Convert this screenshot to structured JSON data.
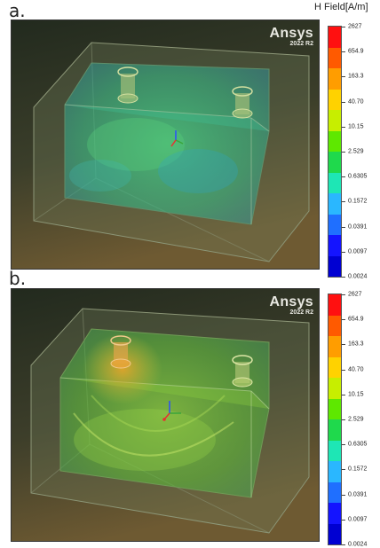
{
  "figure": {
    "quantity_label": "H Field[A/m]",
    "panels": [
      {
        "label": "a.",
        "brand": "Ansys",
        "version": "2022 R2"
      },
      {
        "label": "b.",
        "brand": "Ansys",
        "version": "2022 R2"
      }
    ],
    "legend": {
      "ticks": [
        "2627",
        "654.9",
        "163.3",
        "40.70",
        "10.15",
        "2.529",
        "0.6305",
        "0.1572",
        "0.0391",
        "0.0097",
        "0.0024"
      ],
      "colors": [
        "#ff1010",
        "#ff5a00",
        "#ff9d00",
        "#ffd200",
        "#c7ee00",
        "#5ee800",
        "#1fd94c",
        "#1ee6b5",
        "#2ab7ff",
        "#1f6fff",
        "#1414ff",
        "#0000d2"
      ]
    },
    "scene_colors": {
      "background_top": "#262e20",
      "background_bottom": "#6b5530",
      "panel_a_field": "#3dbf7a",
      "panel_b_field": "#74c43a",
      "hotspot_b": "#e8a52a"
    }
  }
}
